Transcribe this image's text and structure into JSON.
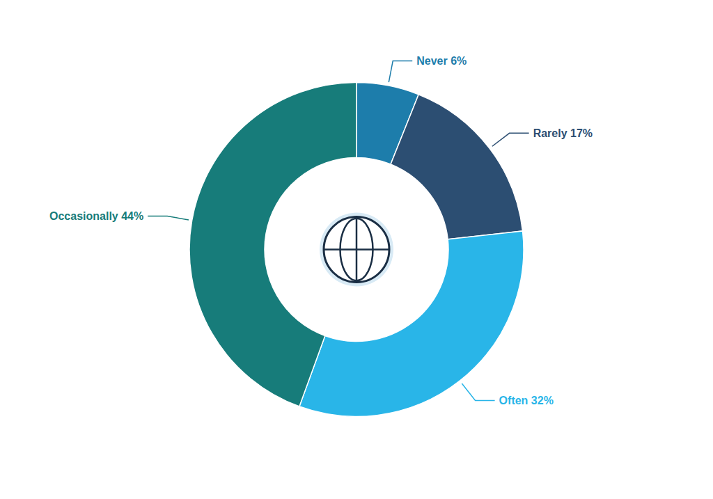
{
  "chart_data": {
    "type": "pie",
    "values": [
      6,
      17,
      32,
      44
    ],
    "value_labels": [
      "Never 6%",
      "Rarely 17%",
      "Often 32%",
      "Occasionally 44%"
    ],
    "colors": [
      "#1d7dab",
      "#2c4e72",
      "#29b5e8",
      "#177c7a"
    ],
    "data_labels": true
  }
}
